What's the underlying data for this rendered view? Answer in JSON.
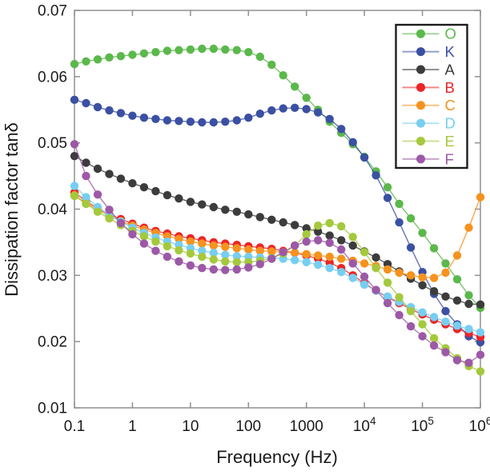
{
  "chart_data": {
    "type": "line",
    "title": "",
    "xlabel": "Frequency (Hz)",
    "ylabel": "Dissipation factor tanδ",
    "x_scale": "log",
    "y_scale": "linear",
    "xlim_log10": [
      -1,
      6
    ],
    "ylim": [
      0.01,
      0.07
    ],
    "grid": false,
    "legend_position": "upper right",
    "x_tick_labels": [
      "0.1",
      "1",
      "10",
      "100",
      "1000",
      "10^4",
      "10^5",
      "10^6"
    ],
    "x_tick_log10_values": [
      -1,
      0,
      1,
      2,
      3,
      4,
      5,
      6
    ],
    "y_tick_labels": [
      "0.01",
      "0.02",
      "0.03",
      "0.04",
      "0.05",
      "0.06",
      "0.07"
    ],
    "y_tick_values": [
      0.01,
      0.02,
      0.03,
      0.04,
      0.05,
      0.06,
      0.07
    ],
    "log10_frequencies": [
      -1.0,
      -0.8,
      -0.6,
      -0.4,
      -0.2,
      0.0,
      0.2,
      0.4,
      0.6,
      0.8,
      1.0,
      1.2,
      1.4,
      1.6,
      1.8,
      2.0,
      2.2,
      2.4,
      2.6,
      2.8,
      3.0,
      3.2,
      3.4,
      3.6,
      3.8,
      4.0,
      4.2,
      4.4,
      4.6,
      4.8,
      5.0,
      5.2,
      5.4,
      5.6,
      5.8,
      6.0
    ],
    "series": [
      {
        "name": "O",
        "color": "#5BB84B",
        "values": [
          0.0619,
          0.0623,
          0.0626,
          0.0629,
          0.0631,
          0.0633,
          0.0635,
          0.0637,
          0.0639,
          0.064,
          0.0641,
          0.0642,
          0.0642,
          0.0641,
          0.064,
          0.0637,
          0.063,
          0.0618,
          0.0602,
          0.0585,
          0.0568,
          0.055,
          0.0532,
          0.0515,
          0.0498,
          0.0479,
          0.0457,
          0.0433,
          0.0408,
          0.0386,
          0.0364,
          0.0341,
          0.0318,
          0.0294,
          0.027,
          0.0251
        ]
      },
      {
        "name": "K",
        "color": "#3B50A3",
        "values": [
          0.0565,
          0.056,
          0.0554,
          0.0549,
          0.0545,
          0.0541,
          0.0538,
          0.0536,
          0.0534,
          0.0533,
          0.0532,
          0.0531,
          0.0531,
          0.0532,
          0.0534,
          0.0538,
          0.0544,
          0.0549,
          0.0552,
          0.0553,
          0.0551,
          0.0546,
          0.0536,
          0.0521,
          0.0501,
          0.0478,
          0.0451,
          0.0417,
          0.038,
          0.0342,
          0.0305,
          0.0272,
          0.0246,
          0.0226,
          0.0208,
          0.0199
        ]
      },
      {
        "name": "A",
        "color": "#3C3C3C",
        "values": [
          0.048,
          0.047,
          0.0461,
          0.0453,
          0.0446,
          0.0439,
          0.0433,
          0.0427,
          0.0421,
          0.0416,
          0.0411,
          0.0407,
          0.0403,
          0.0399,
          0.0396,
          0.0392,
          0.0388,
          0.0384,
          0.038,
          0.0376,
          0.0371,
          0.0366,
          0.036,
          0.0353,
          0.0345,
          0.0336,
          0.0327,
          0.0317,
          0.0306,
          0.0295,
          0.0285,
          0.0276,
          0.0268,
          0.0262,
          0.0257,
          0.0256
        ]
      },
      {
        "name": "B",
        "color": "#EC2426",
        "values": [
          0.0425,
          0.0412,
          0.0401,
          0.0392,
          0.0385,
          0.0378,
          0.0372,
          0.0367,
          0.0363,
          0.0359,
          0.0356,
          0.0353,
          0.035,
          0.0348,
          0.0346,
          0.0344,
          0.0342,
          0.034,
          0.0337,
          0.0334,
          0.033,
          0.0325,
          0.0319,
          0.0311,
          0.03,
          0.0288,
          0.0277,
          0.0267,
          0.0258,
          0.0249,
          0.0241,
          0.0233,
          0.0226,
          0.0219,
          0.0213,
          0.0207
        ]
      },
      {
        "name": "C",
        "color": "#F6921E",
        "values": [
          0.0421,
          0.0409,
          0.0399,
          0.039,
          0.0382,
          0.0375,
          0.0369,
          0.0364,
          0.0359,
          0.0355,
          0.0351,
          0.0348,
          0.0345,
          0.0343,
          0.0341,
          0.0339,
          0.0337,
          0.0336,
          0.0335,
          0.0334,
          0.0332,
          0.033,
          0.0328,
          0.0325,
          0.0322,
          0.0318,
          0.0314,
          0.0309,
          0.0304,
          0.03,
          0.0297,
          0.0296,
          0.0304,
          0.033,
          0.0372,
          0.0418
        ]
      },
      {
        "name": "D",
        "color": "#77CEF1",
        "values": [
          0.0435,
          0.0418,
          0.0403,
          0.0391,
          0.0381,
          0.0372,
          0.0364,
          0.0357,
          0.0351,
          0.0346,
          0.0341,
          0.0337,
          0.0334,
          0.0331,
          0.0329,
          0.0328,
          0.0327,
          0.0326,
          0.0325,
          0.0323,
          0.032,
          0.0316,
          0.0311,
          0.0305,
          0.0296,
          0.0286,
          0.0277,
          0.0268,
          0.026,
          0.0252,
          0.0244,
          0.0237,
          0.023,
          0.0224,
          0.0219,
          0.0214
        ]
      },
      {
        "name": "E",
        "color": "#A4C93C",
        "values": [
          0.042,
          0.0408,
          0.0396,
          0.0386,
          0.0376,
          0.0367,
          0.0359,
          0.0351,
          0.0344,
          0.0338,
          0.0333,
          0.0328,
          0.0324,
          0.0321,
          0.032,
          0.032,
          0.0322,
          0.0326,
          0.0333,
          0.0345,
          0.0362,
          0.0375,
          0.0379,
          0.0374,
          0.0358,
          0.0335,
          0.0311,
          0.0289,
          0.0267,
          0.0246,
          0.0226,
          0.0205,
          0.019,
          0.0175,
          0.0163,
          0.0155
        ]
      },
      {
        "name": "F",
        "color": "#9C59A6",
        "values": [
          0.0498,
          0.045,
          0.0422,
          0.0399,
          0.0379,
          0.0362,
          0.0348,
          0.0337,
          0.0328,
          0.0321,
          0.0315,
          0.0311,
          0.0309,
          0.0308,
          0.0309,
          0.0312,
          0.0317,
          0.0325,
          0.0335,
          0.0345,
          0.0351,
          0.0353,
          0.0349,
          0.0339,
          0.0318,
          0.0298,
          0.0278,
          0.0258,
          0.024,
          0.0223,
          0.0208,
          0.0194,
          0.0184,
          0.0172,
          0.0168,
          0.018
        ]
      }
    ],
    "style": {
      "frame_color": "#909090",
      "text_color": "#1a1a1a",
      "legend_border_color": "#1c1c1c",
      "marker_radius": 5.2,
      "line_width": 1.4
    }
  }
}
